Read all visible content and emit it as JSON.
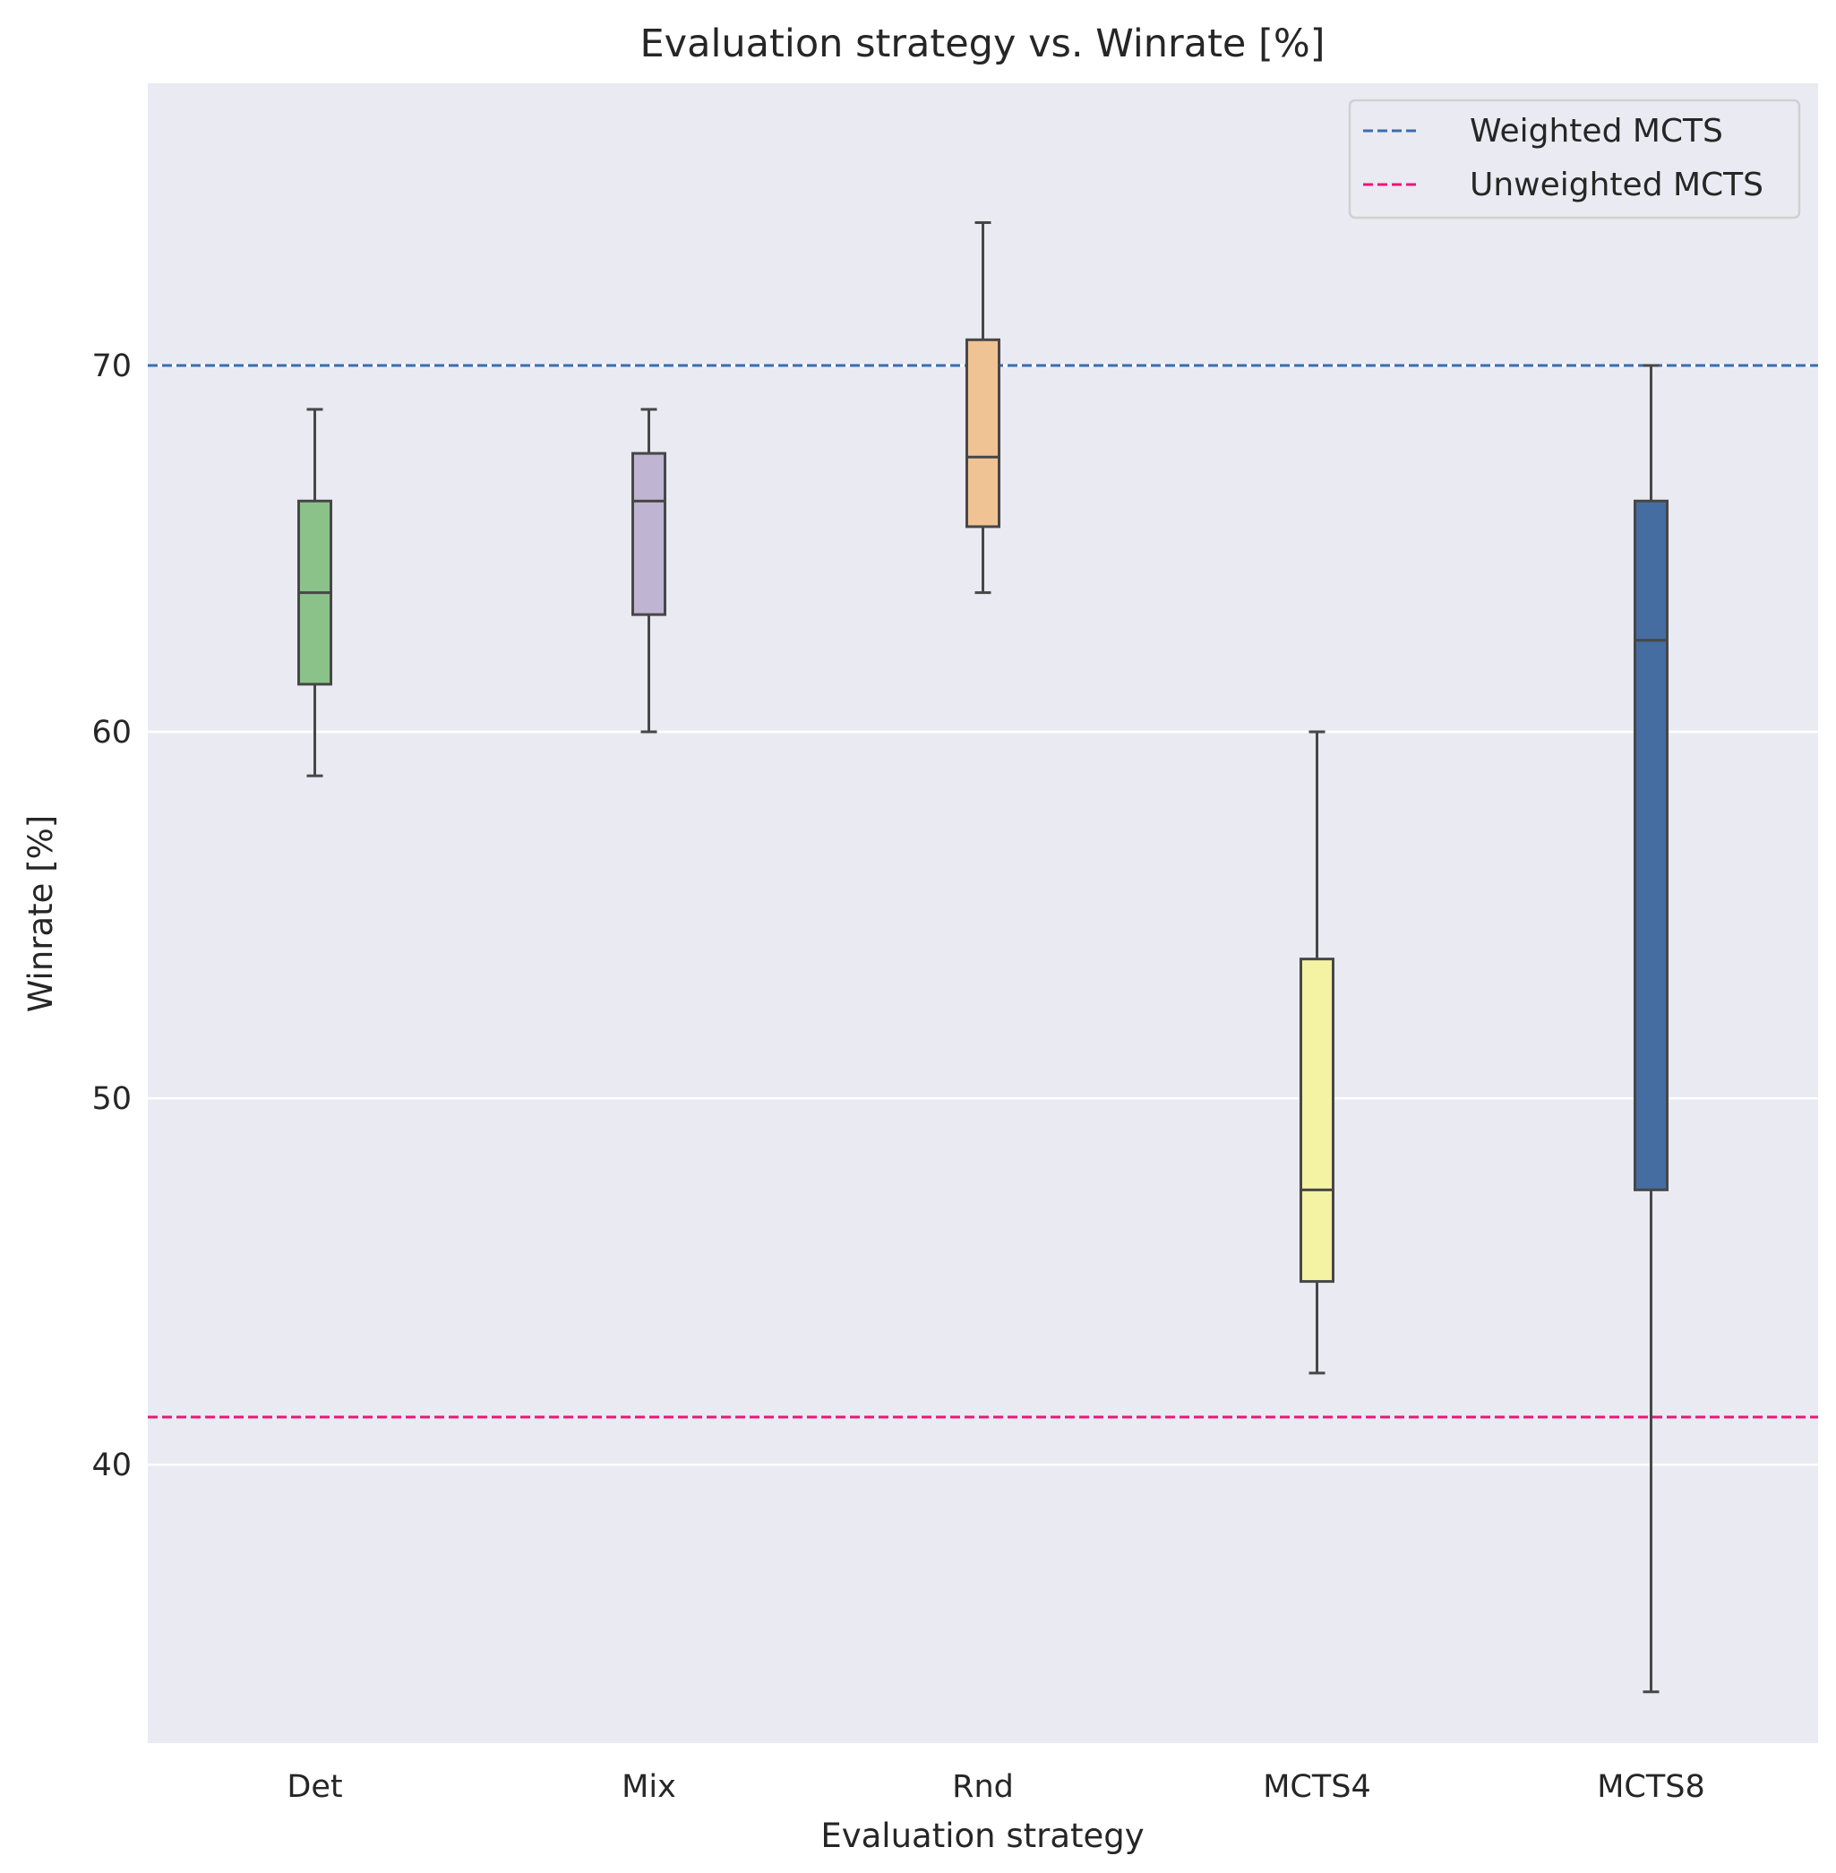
{
  "chart_data": {
    "type": "box",
    "title": "Evaluation strategy vs. Winrate [%]",
    "xlabel": "Evaluation strategy",
    "ylabel": "Winrate [%]",
    "ylim": [
      32.4,
      77.7
    ],
    "yticks": [
      40,
      50,
      60,
      70
    ],
    "grid": true,
    "legend_position": "top-right",
    "categories": [
      "Det",
      "Mix",
      "Rnd",
      "MCTS4",
      "MCTS8"
    ],
    "boxes": [
      {
        "category": "Det",
        "whisker_low": 58.8,
        "q1": 61.3,
        "median": 63.8,
        "q3": 66.3,
        "whisker_high": 68.8,
        "color": "#8bc28a"
      },
      {
        "category": "Mix",
        "whisker_low": 60.0,
        "q1": 63.2,
        "median": 66.3,
        "q3": 67.6,
        "whisker_high": 68.8,
        "color": "#bfb4d2"
      },
      {
        "category": "Rnd",
        "whisker_low": 63.8,
        "q1": 65.6,
        "median": 67.5,
        "q3": 70.7,
        "whisker_high": 73.9,
        "color": "#f0c395"
      },
      {
        "category": "MCTS4",
        "whisker_low": 42.5,
        "q1": 45.0,
        "median": 47.5,
        "q3": 53.8,
        "whisker_high": 60.0,
        "color": "#f3f3a3"
      },
      {
        "category": "MCTS8",
        "whisker_low": 33.8,
        "q1": 47.5,
        "median": 62.5,
        "q3": 66.3,
        "whisker_high": 70.0,
        "color": "#456da1"
      }
    ],
    "reference_lines": [
      {
        "name": "Weighted MCTS",
        "value": 70.0,
        "color": "#3a6db0",
        "style": "dashed"
      },
      {
        "name": "Unweighted MCTS",
        "value": 41.3,
        "color": "#e6197a",
        "style": "dashed"
      }
    ],
    "colors": {
      "plot_background": "#eaeaf2",
      "grid": "#ffffff",
      "box_edge": "#474747",
      "legend_background": "#eaeaf2",
      "legend_border": "#d0d0d0"
    }
  }
}
